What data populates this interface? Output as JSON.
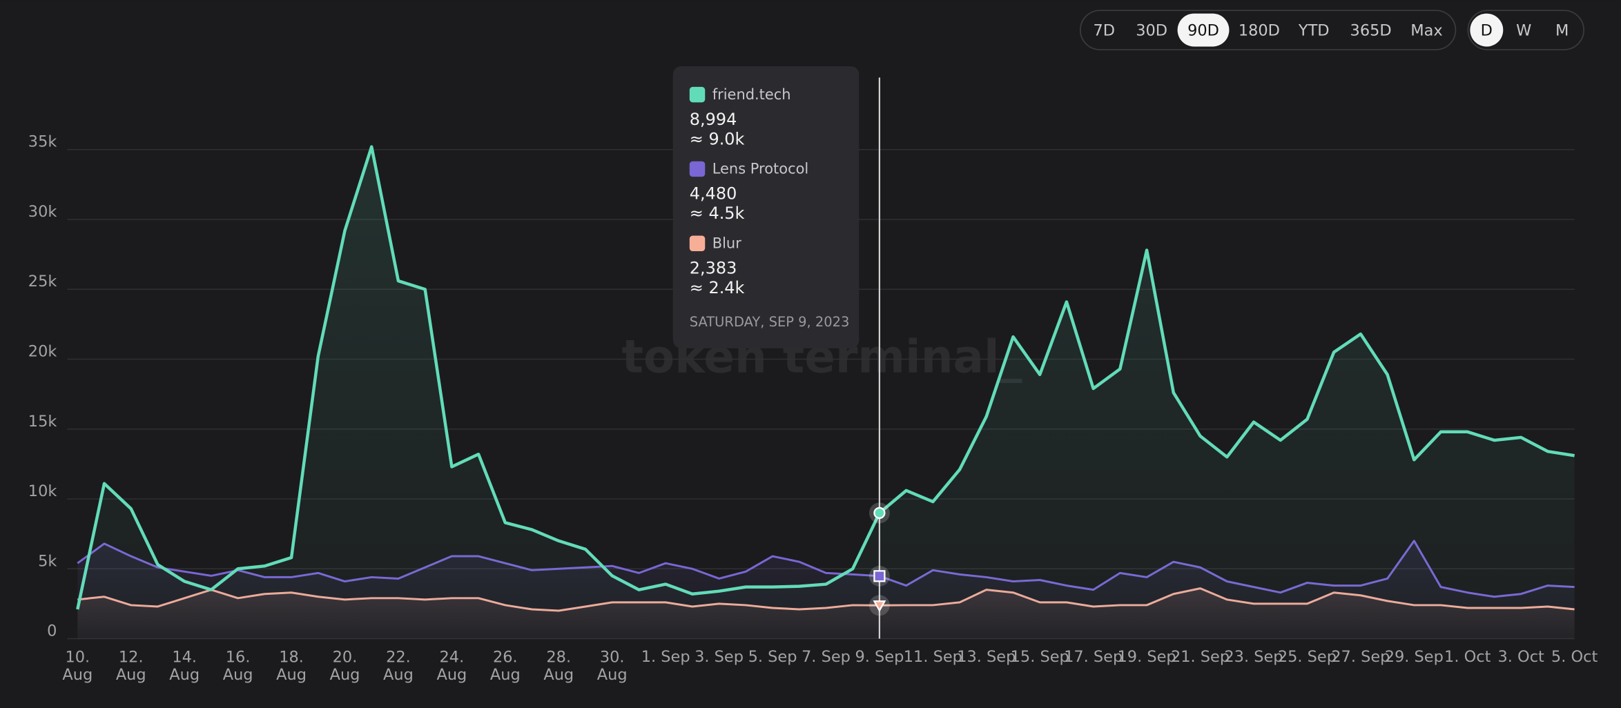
{
  "chart_data": {
    "type": "line",
    "watermark": "token terminal_",
    "categories": [
      "10.\nAug",
      null,
      "12.\nAug",
      null,
      "14.\nAug",
      null,
      "16.\nAug",
      null,
      "18.\nAug",
      null,
      "20.\nAug",
      null,
      "22.\nAug",
      null,
      "24.\nAug",
      null,
      "26.\nAug",
      null,
      "28.\nAug",
      null,
      "30.\nAug",
      null,
      "1. Sep",
      null,
      "3. Sep",
      null,
      "5. Sep",
      null,
      "7. Sep",
      null,
      "9. Sep",
      null,
      "11. Sep",
      null,
      "13. Sep",
      null,
      "15. Sep",
      null,
      "17. Sep",
      null,
      "19. Sep",
      null,
      "21. Sep",
      null,
      "23. Sep",
      null,
      "25. Sep",
      null,
      "27. Sep",
      null,
      "29. Sep",
      null,
      "1. Oct",
      null,
      "3. Oct",
      null,
      "5. Oct"
    ],
    "series": [
      {
        "name": "friend.tech",
        "color": "#62dcb8",
        "values": [
          2100,
          11100,
          9300,
          5300,
          4100,
          3500,
          5000,
          5200,
          5800,
          20200,
          29200,
          35200,
          25600,
          25000,
          12300,
          13200,
          8300,
          7800,
          7000,
          6400,
          4500,
          3500,
          3900,
          3200,
          3400,
          3700,
          3700,
          3750,
          3900,
          5000,
          8994,
          10600,
          9800,
          12100,
          15900,
          21600,
          18900,
          24100,
          17900,
          19300,
          27800,
          17600,
          14500,
          13000,
          15500,
          14200,
          15700,
          20500,
          21800,
          18900,
          12800,
          14800,
          14800,
          14200,
          14400,
          13400,
          13100
        ]
      },
      {
        "name": "Lens Protocol",
        "color": "#7a66d4",
        "values": [
          5400,
          6800,
          5900,
          5100,
          4800,
          4500,
          4900,
          4400,
          4400,
          4700,
          4100,
          4400,
          4300,
          5100,
          5900,
          5900,
          5400,
          4900,
          5000,
          5100,
          5200,
          4700,
          5400,
          5000,
          4300,
          4800,
          5900,
          5500,
          4700,
          4600,
          4480,
          3800,
          4900,
          4600,
          4400,
          4100,
          4200,
          3800,
          3500,
          4700,
          4400,
          5500,
          5100,
          4100,
          3700,
          3300,
          4000,
          3800,
          3800,
          4300,
          7000,
          3700,
          3300,
          3000,
          3200,
          3800,
          3700
        ]
      },
      {
        "name": "Blur",
        "color": "#f7ae96",
        "values": [
          2800,
          3000,
          2400,
          2300,
          2900,
          3500,
          2900,
          3200,
          3300,
          3000,
          2800,
          2900,
          2900,
          2800,
          2900,
          2900,
          2400,
          2100,
          2000,
          2300,
          2600,
          2600,
          2600,
          2300,
          2500,
          2400,
          2200,
          2100,
          2200,
          2400,
          2383,
          2400,
          2400,
          2600,
          3500,
          3300,
          2600,
          2600,
          2300,
          2400,
          2400,
          3200,
          3600,
          2800,
          2500,
          2500,
          2500,
          3300,
          3100,
          2700,
          2400,
          2400,
          2200,
          2200,
          2200,
          2300,
          2100
        ]
      }
    ],
    "ylim": [
      0,
      40000
    ],
    "yticks": [
      0,
      {
        "value": 5000,
        "label": "5k"
      },
      {
        "value": 10000,
        "label": "10k"
      },
      {
        "value": 15000,
        "label": "15k"
      },
      {
        "value": 20000,
        "label": "20k"
      },
      {
        "value": 25000,
        "label": "25k"
      },
      {
        "value": 30000,
        "label": "30k"
      },
      {
        "value": 35000,
        "label": "35k"
      }
    ],
    "grid": true,
    "tooltip": {
      "index": 30,
      "date": "SATURDAY, SEP 9, 2023",
      "values": [
        {
          "exact": "8,994",
          "approx": "≈ 9.0k"
        },
        {
          "exact": "4,480",
          "approx": "≈ 4.5k"
        },
        {
          "exact": "2,383",
          "approx": "≈ 2.4k"
        }
      ]
    },
    "ranges": {
      "options": [
        "7D",
        "30D",
        "90D",
        "180D",
        "YTD",
        "365D",
        "Max"
      ],
      "selected": 2
    },
    "granularity": {
      "options": [
        "D",
        "W",
        "M"
      ],
      "selected": 0
    }
  }
}
